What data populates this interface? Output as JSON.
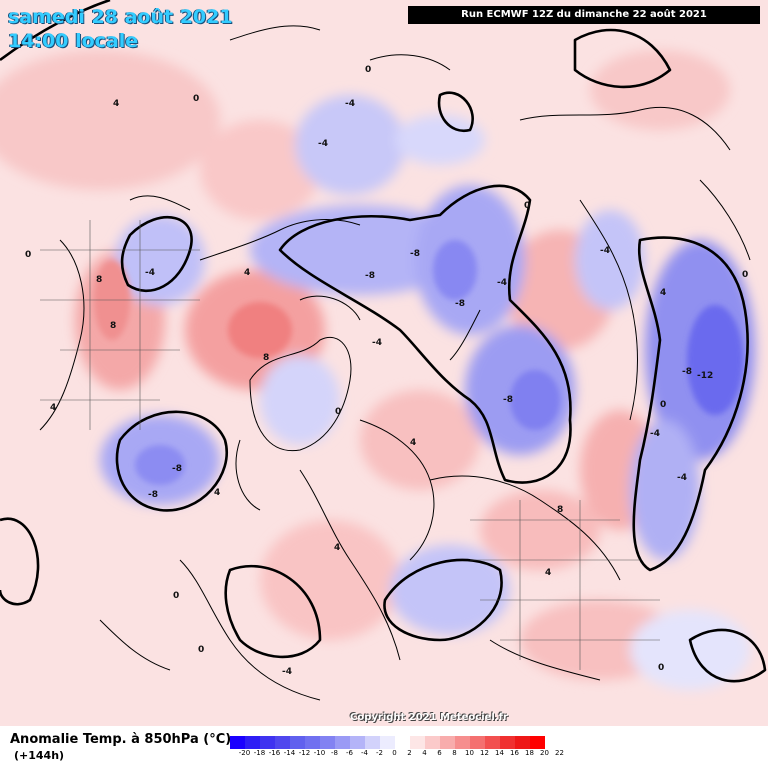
{
  "header": {
    "date": "samedi 28 août 2021",
    "time": "14:00 locale",
    "run": "Run ECMWF 12Z du dimanche 22 août 2021"
  },
  "copyright": "Copyright 2021 Meteociel.fr",
  "footer": {
    "title": "Anomalie Temp. à 850hPa (°C)",
    "step": "(+144h)"
  },
  "legend": {
    "ticks": [
      "-20",
      "-18",
      "-16",
      "-14",
      "-12",
      "-10",
      "-8",
      "-6",
      "-4",
      "-2",
      "0",
      "2",
      "4",
      "6",
      "8",
      "10",
      "12",
      "14",
      "16",
      "18",
      "20",
      "22"
    ],
    "colors": [
      "#1a00ff",
      "#2e1df5",
      "#3f33f0",
      "#5047ee",
      "#6060ee",
      "#7070f0",
      "#8282f2",
      "#9a9af5",
      "#b4b4f8",
      "#d2d2fb",
      "#ececfe",
      "#ffffff",
      "#fde6e6",
      "#fbcaca",
      "#f8acac",
      "#f68e8e",
      "#f47070",
      "#f25050",
      "#f03030",
      "#ee1818",
      "#ff0000"
    ],
    "map_colors": {
      "land_line": "#000000",
      "zero_line": "#000000",
      "warm": "#f4a0a0",
      "cold": "#8a8af0"
    }
  },
  "labels": [
    "0",
    "4",
    "-4",
    "8",
    "-8",
    "-12"
  ]
}
